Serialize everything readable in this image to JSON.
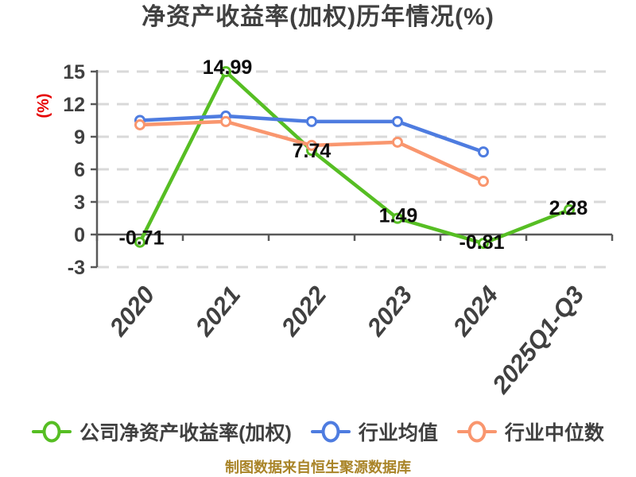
{
  "page": {
    "title": "净资产收益率(加权)历年情况(%)",
    "footer": "制图数据来自恒生聚源数据库"
  },
  "colors": {
    "background": "#ffffff",
    "title_text": "#404040",
    "axis": "#595959",
    "grid": "#d9d9d9",
    "tick_text": "#404040",
    "y_unit_label": "#e60000",
    "point_label": "#0d0d0d",
    "footer_text": "#a98428"
  },
  "chart_data": {
    "type": "line",
    "title": "净资产收益率(加权)历年情况(%)",
    "ylabel": "(%)",
    "xlabel": "",
    "categories": [
      "2020",
      "2021",
      "2022",
      "2023",
      "2024",
      "2025Q1-Q3"
    ],
    "yticks": [
      15,
      12,
      9,
      6,
      3,
      0,
      -3
    ],
    "ylim": [
      -3,
      15
    ],
    "grid": "horizontal-dashed",
    "legend_position": "bottom",
    "series": [
      {
        "id": "company-roe",
        "name": "公司净资产收益率(加权)",
        "color": "#56be23",
        "values": [
          -0.71,
          14.99,
          7.74,
          1.49,
          -0.81,
          2.28
        ],
        "point_labels": [
          "-0.71",
          "14.99",
          "7.74",
          "1.49",
          "-0.81",
          "2.28"
        ]
      },
      {
        "id": "industry-mean",
        "name": "行业均值",
        "color": "#4e7ce0",
        "values": [
          10.5,
          10.9,
          10.4,
          10.4,
          7.6
        ],
        "point_labels": []
      },
      {
        "id": "industry-median",
        "name": "行业中位数",
        "color": "#f9966e",
        "values": [
          10.1,
          10.4,
          8.2,
          8.5,
          4.9
        ],
        "point_labels": []
      }
    ],
    "footer": "制图数据来自恒生聚源数据库"
  }
}
